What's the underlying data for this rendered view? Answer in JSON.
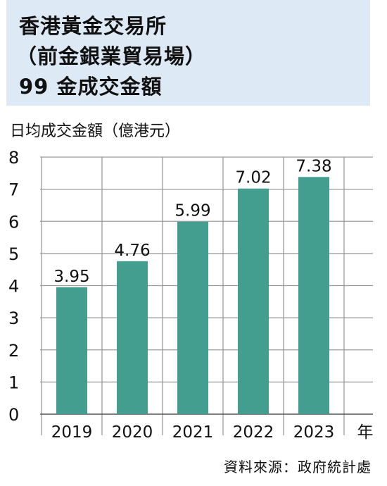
{
  "title": {
    "line1": "香港黃金交易所",
    "line2": "（前金銀業貿易場）",
    "line3": "99 金成交金額"
  },
  "unit_label": "日均成交金額（億港元）",
  "source": "資料來源：政府統計處",
  "colors": {
    "bar": "#439e8f",
    "title_bg": "#dde9f5",
    "grid": "#9a9a9a"
  },
  "chart_data": {
    "type": "bar",
    "categories": [
      "2019",
      "2020",
      "2021",
      "2022",
      "2023"
    ],
    "values": [
      3.95,
      4.76,
      5.99,
      7.02,
      7.38
    ],
    "data_labels": [
      "3.95",
      "4.76",
      "5.99",
      "7.02",
      "7.38"
    ],
    "title": "香港黃金交易所（前金銀業貿易場）99 金成交金額",
    "xlabel": "年",
    "ylabel": "日均成交金額（億港元）",
    "ylim": [
      0,
      8
    ],
    "yticks": [
      "0",
      "1",
      "2",
      "3",
      "4",
      "5",
      "6",
      "7",
      "8"
    ],
    "grid": true,
    "legend": "none"
  }
}
